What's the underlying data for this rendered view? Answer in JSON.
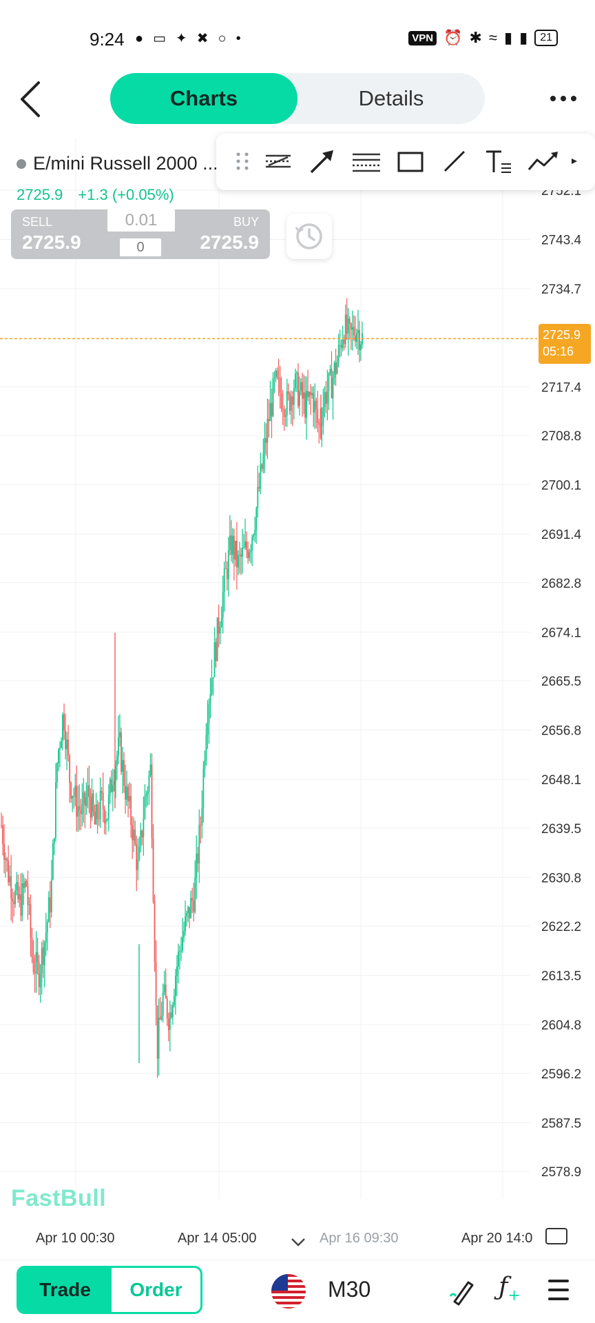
{
  "status_bar": {
    "time": "9:24",
    "vpn": "VPN",
    "battery": "21"
  },
  "header": {
    "tabs": [
      {
        "label": "Charts",
        "active": true
      },
      {
        "label": "Details",
        "active": false
      }
    ]
  },
  "instrument": {
    "name": "E/mini Russell 2000 ...",
    "last": "2725.9",
    "change": "+1.3 (+0.05%)",
    "change_color": "#12c48b"
  },
  "trade_box": {
    "sell_label": "SELL",
    "sell_price": "2725.9",
    "buy_label": "BUY",
    "buy_price": "2725.9",
    "lot": "0.01",
    "qty": "0"
  },
  "toolbar": {
    "tools": [
      "drag-handle-icon",
      "parallel-channel-icon",
      "arrow-tool-icon",
      "fib-retracement-icon",
      "rectangle-tool-icon",
      "trend-line-icon",
      "text-tool-icon",
      "polyline-tool-icon",
      "more-tools-icon"
    ]
  },
  "current_price_tag": {
    "price": "2725.9",
    "countdown": "05:16",
    "color": "#f5a623"
  },
  "chart_data": {
    "type": "candlestick",
    "timeframe": "M30",
    "y_ticks": [
      "2752.1",
      "2743.4",
      "2734.7",
      "2717.4",
      "2708.8",
      "2700.1",
      "2691.4",
      "2682.8",
      "2674.1",
      "2665.5",
      "2656.8",
      "2648.1",
      "2639.5",
      "2630.8",
      "2622.2",
      "2613.5",
      "2604.8",
      "2596.2",
      "2587.5",
      "2578.9"
    ],
    "x_ticks": [
      "Apr 10 00:30",
      "Apr 14 05:00",
      "Apr 16 09:30",
      "Apr 20 14:0"
    ],
    "current_price": 2725.9,
    "up_color": "#12c48b",
    "down_color": "#f25c5c",
    "path_points": [
      2640,
      2632,
      2628,
      2626,
      2630,
      2616,
      2614,
      2620,
      2628,
      2652,
      2660,
      2648,
      2644,
      2642,
      2646,
      2640,
      2644,
      2642,
      2650,
      2654,
      2646,
      2640,
      2632,
      2644,
      2650,
      2600,
      2610,
      2606,
      2614,
      2620,
      2624,
      2628,
      2640,
      2660,
      2668,
      2676,
      2684,
      2690,
      2686,
      2688,
      2690,
      2696,
      2704,
      2712,
      2718,
      2716,
      2714,
      2718,
      2716,
      2714,
      2716,
      2710,
      2716,
      2718,
      2722,
      2728,
      2726,
      2728,
      2725.9
    ]
  },
  "watermark": "FastBull",
  "bottom_bar": {
    "trade_label": "Trade",
    "order_label": "Order",
    "timeframe": "M30"
  }
}
